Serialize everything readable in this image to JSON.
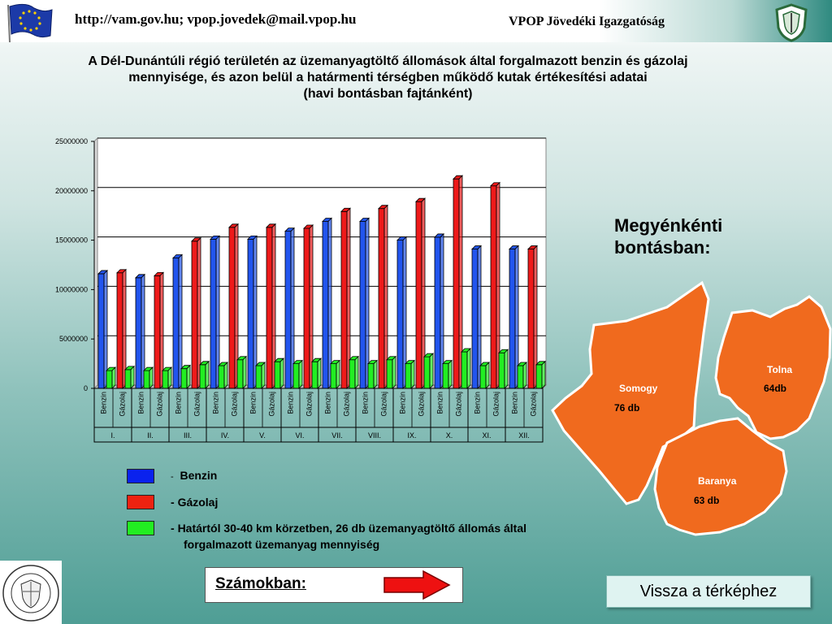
{
  "header": {
    "url_text": "http://vam.gov.hu; vpop.jovedek@mail.vpop.hu",
    "org_text": "VPOP Jövedéki Igazgatóság"
  },
  "title_lines": [
    "A Dél-Dunántúli régió területén az üzemanyagtöltő állomások által forgalmazott benzin és gázolaj",
    "mennyisége, és azon belül a határmenti térségben működő kutak értékesítési adatai",
    "(havi bontásban fajtánként)"
  ],
  "chart_data": {
    "type": "bar",
    "months": [
      "I.",
      "II.",
      "III.",
      "IV.",
      "V.",
      "VI.",
      "VII.",
      "VIII.",
      "IX.",
      "X.",
      "XI.",
      "XII."
    ],
    "sub_categories": [
      "Benzin",
      "Gázolaj"
    ],
    "series": [
      {
        "key": "benzin",
        "color": "#2255ee",
        "values": [
          11600000,
          11200000,
          13200000,
          15100000,
          15100000,
          15900000,
          16900000,
          16900000,
          15000000,
          15300000,
          14100000,
          14100000
        ]
      },
      {
        "key": "gazolaj",
        "color": "#ee1a1a",
        "values": [
          11700000,
          11400000,
          14900000,
          16300000,
          16300000,
          16200000,
          17900000,
          18200000,
          18900000,
          21200000,
          20500000,
          14100000
        ]
      },
      {
        "key": "border_benzin",
        "color": "#22ee22",
        "values": [
          1800000,
          1800000,
          2000000,
          2300000,
          2300000,
          2500000,
          2500000,
          2500000,
          2500000,
          2500000,
          2300000,
          2300000
        ]
      },
      {
        "key": "border_gazolaj",
        "color": "#22ee22",
        "values": [
          1900000,
          1800000,
          2400000,
          2900000,
          2700000,
          2700000,
          2900000,
          2900000,
          3200000,
          3700000,
          3600000,
          2400000
        ]
      }
    ],
    "yticks": [
      0,
      5000000,
      10000000,
      15000000,
      20000000,
      25000000
    ],
    "ylim": [
      0,
      25000000
    ],
    "grid": true
  },
  "legend": {
    "items": [
      {
        "color": "#0a22ee",
        "dash": "-",
        "label": "Benzin"
      },
      {
        "color": "#ee2211",
        "dash": "-",
        "label": "Gázolaj"
      },
      {
        "color": "#22ee22",
        "dash": "-",
        "label": "Határtól 30-40 km körzetben, 26 db üzemanyagtöltő állomás által",
        "label2": "forgalmazott üzemanyag mennyiség"
      }
    ]
  },
  "side": {
    "heading_line1": "Megyénkénti",
    "heading_line2": "bontásban:"
  },
  "map": {
    "fill": "#f06a1e",
    "counties": [
      {
        "name": "Somogy",
        "count": "76 db"
      },
      {
        "name": "Tolna",
        "count": "64db"
      },
      {
        "name": "Baranya",
        "count": "63 db"
      }
    ]
  },
  "footer": {
    "numbers_label": "Számokban:",
    "back_button": "Vissza a térképhez",
    "seal_text_top": "140 ÉVES A VÁM- ÉS PÉNZÜGYŐRSÉG",
    "seal_year1": "1867",
    "seal_year2": "2007"
  }
}
